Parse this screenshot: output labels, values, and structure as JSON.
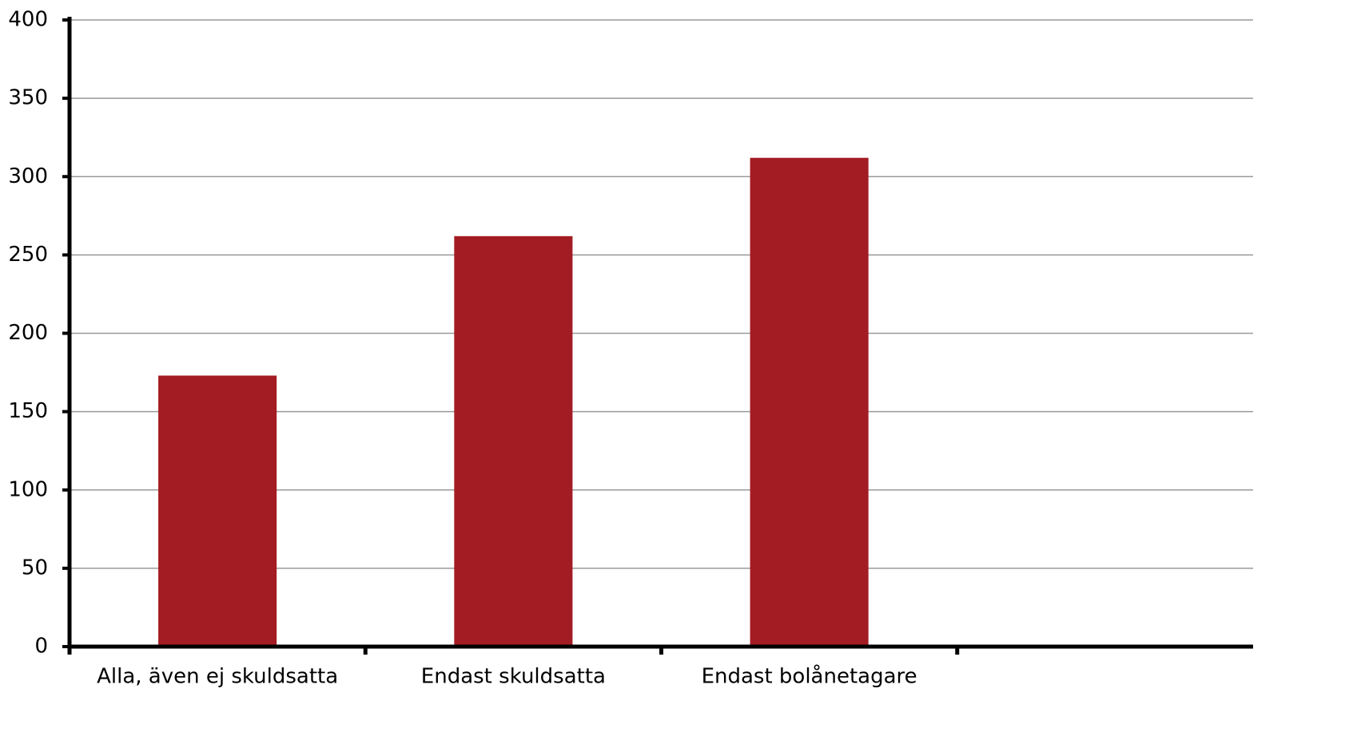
{
  "chart_data": {
    "type": "bar",
    "categories": [
      "Alla, även ej skuldsatta",
      "Endast skuldsatta",
      "Endast bolånetagare",
      null
    ],
    "values": [
      173,
      262,
      312,
      null
    ],
    "color": "#a31c23",
    "ylim": [
      0,
      400
    ],
    "yticks": [
      0,
      50,
      100,
      150,
      200,
      250,
      300,
      350,
      400
    ],
    "grid": true
  }
}
